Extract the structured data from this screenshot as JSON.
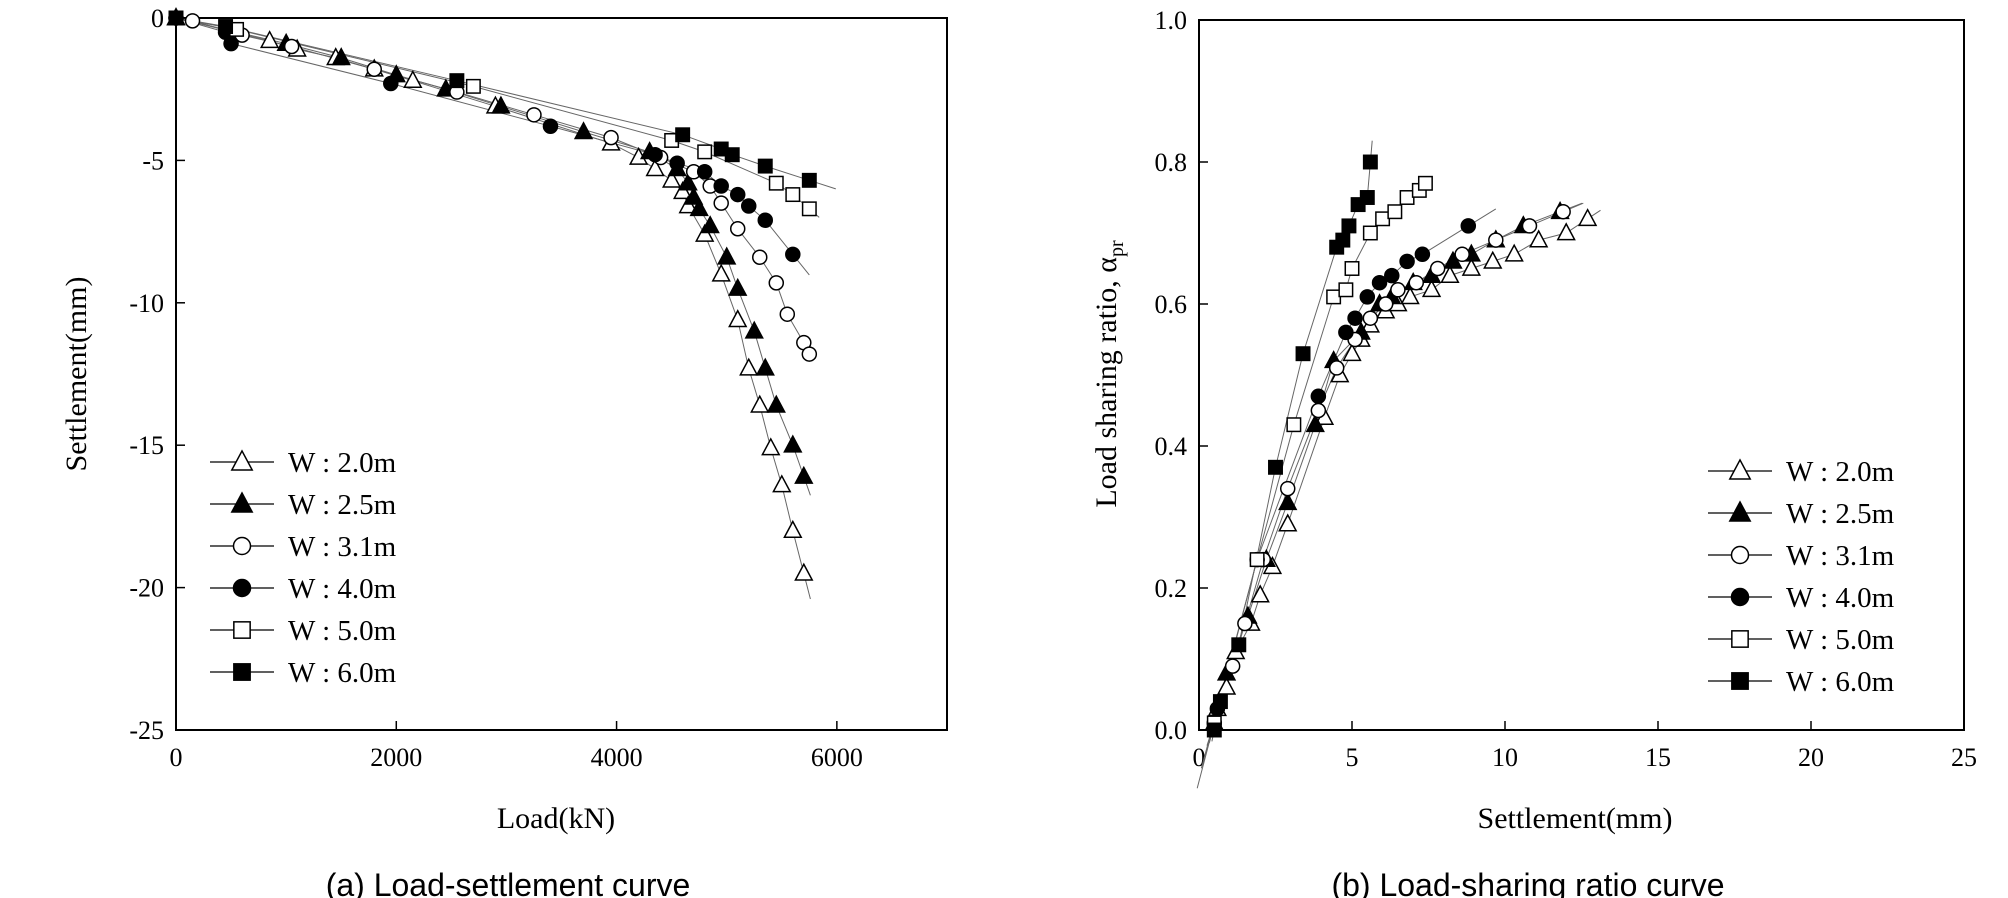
{
  "chart_data": [
    {
      "type": "scatter",
      "caption": "(a) Load-settlement curve",
      "xlabel": "Load(kN)",
      "ylabel": "Settlement(mm)",
      "xlim": [
        0,
        7000
      ],
      "ylim": [
        -25,
        0
      ],
      "x_ticks": [
        "0",
        "2000",
        "4000",
        "6000"
      ],
      "y_ticks": [
        "0",
        "-5",
        "-10",
        "-15",
        "-20",
        "-25"
      ],
      "grid": false,
      "legend_position": "bottom-left",
      "series": [
        {
          "name": "W : 2.0m",
          "marker": "triangle-open",
          "points": [
            [
              0,
              0
            ],
            [
              850,
              -0.8
            ],
            [
              1100,
              -1.1
            ],
            [
              1450,
              -1.4
            ],
            [
              1800,
              -1.8
            ],
            [
              2150,
              -2.2
            ],
            [
              2900,
              -3.1
            ],
            [
              3950,
              -4.4
            ],
            [
              4200,
              -4.9
            ],
            [
              4350,
              -5.3
            ],
            [
              4500,
              -5.7
            ],
            [
              4600,
              -6.1
            ],
            [
              4650,
              -6.6
            ],
            [
              4800,
              -7.6
            ],
            [
              4950,
              -9.0
            ],
            [
              5100,
              -10.6
            ],
            [
              5200,
              -12.3
            ],
            [
              5300,
              -13.6
            ],
            [
              5400,
              -15.1
            ],
            [
              5500,
              -16.4
            ],
            [
              5600,
              -18.0
            ],
            [
              5700,
              -19.5
            ]
          ]
        },
        {
          "name": "W : 2.5m",
          "marker": "triangle-filled",
          "points": [
            [
              0,
              0
            ],
            [
              1000,
              -0.9
            ],
            [
              1500,
              -1.4
            ],
            [
              2000,
              -2.0
            ],
            [
              2450,
              -2.5
            ],
            [
              2950,
              -3.1
            ],
            [
              3700,
              -4.0
            ],
            [
              4300,
              -4.7
            ],
            [
              4550,
              -5.3
            ],
            [
              4650,
              -5.8
            ],
            [
              4700,
              -6.3
            ],
            [
              4750,
              -6.7
            ],
            [
              4850,
              -7.3
            ],
            [
              5000,
              -8.4
            ],
            [
              5100,
              -9.5
            ],
            [
              5250,
              -11.0
            ],
            [
              5350,
              -12.3
            ],
            [
              5450,
              -13.6
            ],
            [
              5600,
              -15.0
            ],
            [
              5700,
              -16.1
            ]
          ]
        },
        {
          "name": "W : 3.1m",
          "marker": "circle-open",
          "points": [
            [
              0,
              0
            ],
            [
              150,
              -0.1
            ],
            [
              600,
              -0.6
            ],
            [
              1050,
              -1.0
            ],
            [
              1800,
              -1.8
            ],
            [
              2550,
              -2.6
            ],
            [
              3250,
              -3.4
            ],
            [
              3950,
              -4.2
            ],
            [
              4400,
              -4.9
            ],
            [
              4700,
              -5.4
            ],
            [
              4850,
              -5.9
            ],
            [
              4950,
              -6.5
            ],
            [
              5100,
              -7.4
            ],
            [
              5300,
              -8.4
            ],
            [
              5450,
              -9.3
            ],
            [
              5550,
              -10.4
            ],
            [
              5700,
              -11.4
            ],
            [
              5750,
              -11.8
            ]
          ]
        },
        {
          "name": "W : 4.0m",
          "marker": "circle-filled",
          "points": [
            [
              0,
              0
            ],
            [
              450,
              -0.5
            ],
            [
              500,
              -0.9
            ],
            [
              1950,
              -2.3
            ],
            [
              3400,
              -3.8
            ],
            [
              4350,
              -4.8
            ],
            [
              4550,
              -5.1
            ],
            [
              4800,
              -5.4
            ],
            [
              4950,
              -5.9
            ],
            [
              5100,
              -6.2
            ],
            [
              5200,
              -6.6
            ],
            [
              5350,
              -7.1
            ],
            [
              5600,
              -8.3
            ]
          ]
        },
        {
          "name": "W : 5.0m",
          "marker": "square-open",
          "points": [
            [
              0,
              0
            ],
            [
              550,
              -0.4
            ],
            [
              2700,
              -2.4
            ],
            [
              4500,
              -4.3
            ],
            [
              4800,
              -4.7
            ],
            [
              5450,
              -5.8
            ],
            [
              5600,
              -6.2
            ],
            [
              5750,
              -6.7
            ]
          ]
        },
        {
          "name": "W : 6.0m",
          "marker": "square-filled",
          "points": [
            [
              0,
              0
            ],
            [
              450,
              -0.3
            ],
            [
              2550,
              -2.2
            ],
            [
              4600,
              -4.1
            ],
            [
              4950,
              -4.6
            ],
            [
              5050,
              -4.8
            ],
            [
              5350,
              -5.2
            ],
            [
              5750,
              -5.7
            ]
          ]
        }
      ]
    },
    {
      "type": "scatter",
      "caption": "(b) Load-sharing ratio curve",
      "xlabel": "Settlement(mm)",
      "ylabel_main": "Load sharing ratio, α",
      "ylabel_sub": "pr",
      "xlim": [
        0,
        25
      ],
      "ylim": [
        0,
        1.0
      ],
      "x_ticks": [
        "0",
        "5",
        "10",
        "15",
        "20",
        "25"
      ],
      "y_ticks": [
        "0.0",
        "0.2",
        "0.4",
        "0.6",
        "0.8",
        "1.0"
      ],
      "grid": false,
      "legend_position": "bottom-right",
      "series": [
        {
          "name": "W : 2.0m",
          "marker": "triangle-open",
          "points": [
            [
              0.6,
              0.03
            ],
            [
              0.9,
              0.06
            ],
            [
              1.2,
              0.11
            ],
            [
              1.7,
              0.15
            ],
            [
              2.0,
              0.19
            ],
            [
              2.4,
              0.23
            ],
            [
              2.9,
              0.29
            ],
            [
              4.1,
              0.44
            ],
            [
              4.6,
              0.5
            ],
            [
              5.0,
              0.53
            ],
            [
              5.3,
              0.55
            ],
            [
              5.6,
              0.57
            ],
            [
              6.1,
              0.59
            ],
            [
              6.5,
              0.6
            ],
            [
              6.9,
              0.61
            ],
            [
              7.6,
              0.62
            ],
            [
              8.2,
              0.64
            ],
            [
              8.9,
              0.65
            ],
            [
              9.6,
              0.66
            ],
            [
              10.3,
              0.67
            ],
            [
              11.1,
              0.69
            ],
            [
              12.0,
              0.7
            ],
            [
              12.7,
              0.72
            ]
          ]
        },
        {
          "name": "W : 2.5m",
          "marker": "triangle-filled",
          "points": [
            [
              0.5,
              0.01
            ],
            [
              0.9,
              0.08
            ],
            [
              1.6,
              0.16
            ],
            [
              2.2,
              0.24
            ],
            [
              2.9,
              0.32
            ],
            [
              3.8,
              0.43
            ],
            [
              4.4,
              0.52
            ],
            [
              5.3,
              0.56
            ],
            [
              5.9,
              0.6
            ],
            [
              6.3,
              0.61
            ],
            [
              7.0,
              0.63
            ],
            [
              7.6,
              0.64
            ],
            [
              8.3,
              0.66
            ],
            [
              8.9,
              0.67
            ],
            [
              9.7,
              0.69
            ],
            [
              10.6,
              0.71
            ],
            [
              11.8,
              0.73
            ]
          ]
        },
        {
          "name": "W : 3.1m",
          "marker": "circle-open",
          "points": [
            [
              0.5,
              0.01
            ],
            [
              1.1,
              0.09
            ],
            [
              1.5,
              0.15
            ],
            [
              2.1,
              0.24
            ],
            [
              2.9,
              0.34
            ],
            [
              3.9,
              0.45
            ],
            [
              4.5,
              0.51
            ],
            [
              5.1,
              0.55
            ],
            [
              5.6,
              0.58
            ],
            [
              6.1,
              0.6
            ],
            [
              6.5,
              0.62
            ],
            [
              7.1,
              0.63
            ],
            [
              7.8,
              0.65
            ],
            [
              8.6,
              0.67
            ],
            [
              9.7,
              0.69
            ],
            [
              10.8,
              0.71
            ],
            [
              11.9,
              0.73
            ]
          ]
        },
        {
          "name": "W : 4.0m",
          "marker": "circle-filled",
          "points": [
            [
              0.6,
              0.03
            ],
            [
              1.9,
              0.24
            ],
            [
              3.9,
              0.47
            ],
            [
              4.8,
              0.56
            ],
            [
              5.1,
              0.58
            ],
            [
              5.5,
              0.61
            ],
            [
              5.9,
              0.63
            ],
            [
              6.3,
              0.64
            ],
            [
              6.8,
              0.66
            ],
            [
              7.3,
              0.67
            ],
            [
              8.8,
              0.71
            ]
          ]
        },
        {
          "name": "W : 5.0m",
          "marker": "square-open",
          "points": [
            [
              0.5,
              0.01
            ],
            [
              1.9,
              0.24
            ],
            [
              3.1,
              0.43
            ],
            [
              4.4,
              0.61
            ],
            [
              4.8,
              0.62
            ],
            [
              5.0,
              0.65
            ],
            [
              5.6,
              0.7
            ],
            [
              6.0,
              0.72
            ],
            [
              6.4,
              0.73
            ],
            [
              6.8,
              0.75
            ],
            [
              7.2,
              0.76
            ],
            [
              7.4,
              0.77
            ]
          ]
        },
        {
          "name": "W : 6.0m",
          "marker": "square-filled",
          "points": [
            [
              0.5,
              0.0
            ],
            [
              0.7,
              0.04
            ],
            [
              1.3,
              0.12
            ],
            [
              2.5,
              0.37
            ],
            [
              3.4,
              0.53
            ],
            [
              4.5,
              0.68
            ],
            [
              4.7,
              0.69
            ],
            [
              4.9,
              0.71
            ],
            [
              5.2,
              0.74
            ],
            [
              5.5,
              0.75
            ],
            [
              5.6,
              0.8
            ]
          ]
        }
      ]
    }
  ]
}
